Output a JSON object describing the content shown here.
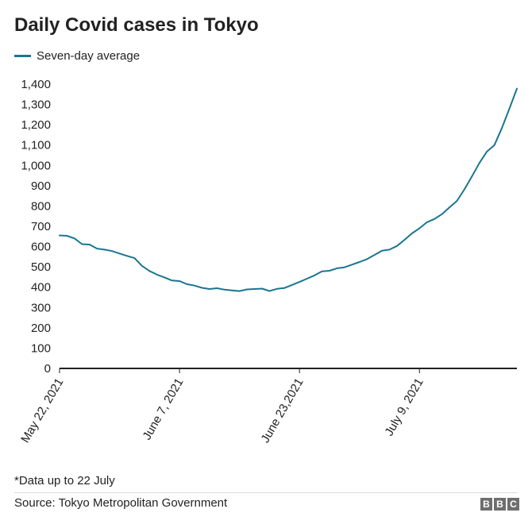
{
  "title": "Daily Covid cases in Tokyo",
  "legend": {
    "label": "Seven-day average"
  },
  "colors": {
    "line": "#1a7591",
    "axis": "#222222",
    "text": "#222222"
  },
  "footnote": "*Data up to 22 July",
  "source": "Source: Tokyo Metropolitan Government",
  "brand": {
    "letters": [
      "B",
      "B",
      "C"
    ]
  },
  "chart_data": {
    "type": "line",
    "title": "Daily Covid cases in Tokyo",
    "xlabel": "",
    "ylabel": "",
    "ylim": [
      0,
      1400
    ],
    "y_ticks": [
      0,
      100,
      200,
      300,
      400,
      500,
      600,
      700,
      800,
      900,
      1000,
      1100,
      1200,
      1300,
      1400
    ],
    "y_tick_labels": [
      "0",
      "100",
      "200",
      "300",
      "400",
      "500",
      "600",
      "700",
      "800",
      "900",
      "1,000",
      "1,100",
      "1,200",
      "1,300",
      "1,400"
    ],
    "x_tick_labels": [
      {
        "day": 0,
        "label": "May 22, 2021"
      },
      {
        "day": 16,
        "label": "June 7, 2021"
      },
      {
        "day": 32,
        "label": "June 23,2021"
      },
      {
        "day": 48,
        "label": "July 9, 2021"
      }
    ],
    "x_range": [
      0,
      61
    ],
    "legend_position": "top-left",
    "series": [
      {
        "name": "Seven-day average",
        "values": [
          655,
          653,
          640,
          612,
          610,
          590,
          585,
          578,
          566,
          554,
          543,
          505,
          480,
          462,
          448,
          433,
          430,
          415,
          408,
          397,
          391,
          395,
          388,
          384,
          381,
          389,
          391,
          393,
          381,
          392,
          396,
          411,
          426,
          442,
          458,
          478,
          481,
          493,
          498,
          511,
          524,
          538,
          559,
          580,
          585,
          603,
          633,
          665,
          690,
          720,
          736,
          760,
          793,
          825,
          882,
          945,
          1012,
          1068,
          1100,
          1184,
          1280,
          1378
        ]
      }
    ]
  }
}
